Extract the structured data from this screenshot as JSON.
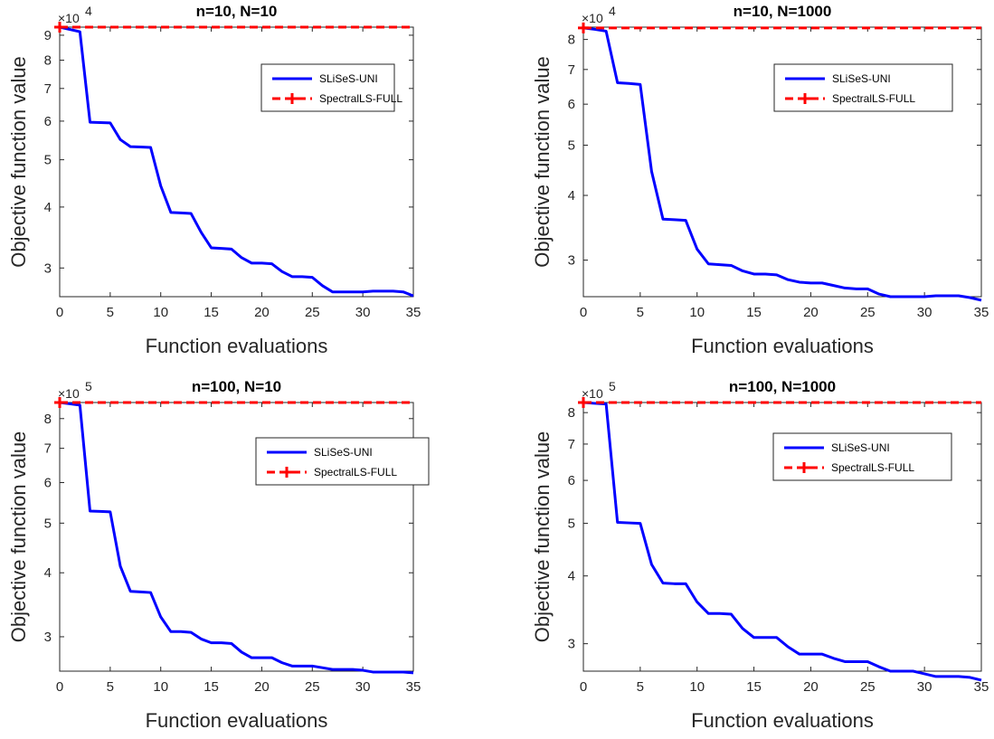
{
  "colors": {
    "uni": "#0000ff",
    "full": "#ff0000",
    "axis": "#262626"
  },
  "chart_data": [
    {
      "type": "line",
      "title": "n=10, N=10",
      "xlabel": "Function evaluations",
      "ylabel": "Objective function value",
      "yscale": "log",
      "exponent_label": "×10",
      "exponent_power": "4",
      "xlim": [
        0,
        35
      ],
      "ylim": [
        2.62,
        9.35
      ],
      "xticks": [
        0,
        5,
        10,
        15,
        20,
        25,
        30,
        35
      ],
      "xtick_labels": [
        "0",
        "5",
        "10",
        "15",
        "20",
        "25",
        "30",
        "35"
      ],
      "yticks": [
        3,
        4,
        5,
        6,
        7,
        8,
        9
      ],
      "ytick_labels": [
        "3",
        "4",
        "5",
        "6",
        "7",
        "8",
        "9"
      ],
      "legend": "inside-top-right",
      "series": [
        {
          "name": "SLiSeS-UNI",
          "x": [
            0,
            1,
            2,
            3,
            4,
            5,
            6,
            7,
            8,
            9,
            10,
            11,
            12,
            13,
            14,
            15,
            16,
            17,
            18,
            19,
            20,
            21,
            22,
            23,
            24,
            25,
            26,
            27,
            28,
            29,
            30,
            31,
            32,
            33,
            34,
            35
          ],
          "y": [
            9.35,
            9.25,
            9.15,
            5.97,
            5.96,
            5.95,
            5.5,
            5.32,
            5.31,
            5.3,
            4.42,
            3.9,
            3.89,
            3.88,
            3.55,
            3.3,
            3.29,
            3.28,
            3.15,
            3.07,
            3.07,
            3.06,
            2.95,
            2.88,
            2.88,
            2.87,
            2.76,
            2.68,
            2.68,
            2.68,
            2.68,
            2.69,
            2.69,
            2.69,
            2.68,
            2.63
          ]
        },
        {
          "name": "SpectralLS-FULL",
          "x": [
            0,
            35
          ],
          "y": [
            9.35,
            9.35
          ]
        }
      ]
    },
    {
      "type": "line",
      "title": "n=10, N=1000",
      "xlabel": "Function evaluations",
      "ylabel": "Objective function value",
      "yscale": "log",
      "exponent_label": "×10",
      "exponent_power": "4",
      "xlim": [
        0,
        35
      ],
      "ylim": [
        2.55,
        8.45
      ],
      "xticks": [
        0,
        5,
        10,
        15,
        20,
        25,
        30,
        35
      ],
      "xtick_labels": [
        "0",
        "5",
        "10",
        "15",
        "20",
        "25",
        "30",
        "35"
      ],
      "yticks": [
        3,
        4,
        5,
        6,
        7,
        8
      ],
      "ytick_labels": [
        "3",
        "4",
        "5",
        "6",
        "7",
        "8"
      ],
      "legend": "inside-top-right",
      "series": [
        {
          "name": "SLiSeS-UNI",
          "x": [
            0,
            1,
            2,
            3,
            4,
            5,
            6,
            7,
            8,
            9,
            10,
            11,
            12,
            13,
            14,
            15,
            16,
            17,
            18,
            19,
            20,
            21,
            22,
            23,
            24,
            25,
            26,
            27,
            28,
            29,
            30,
            31,
            32,
            33,
            34,
            35
          ],
          "y": [
            8.42,
            8.37,
            8.3,
            6.6,
            6.58,
            6.55,
            4.45,
            3.6,
            3.59,
            3.58,
            3.15,
            2.95,
            2.94,
            2.93,
            2.86,
            2.82,
            2.82,
            2.81,
            2.75,
            2.72,
            2.71,
            2.71,
            2.68,
            2.65,
            2.64,
            2.64,
            2.58,
            2.55,
            2.55,
            2.55,
            2.55,
            2.56,
            2.56,
            2.56,
            2.54,
            2.51
          ]
        },
        {
          "name": "SpectralLS-FULL",
          "x": [
            0,
            35
          ],
          "y": [
            8.42,
            8.42
          ]
        }
      ]
    },
    {
      "type": "line",
      "title": "n=100, N=10",
      "xlabel": "Function evaluations",
      "ylabel": "Objective function value",
      "yscale": "log",
      "exponent_label": "×10",
      "exponent_power": "5",
      "xlim": [
        0,
        35
      ],
      "ylim": [
        2.57,
        8.6
      ],
      "xticks": [
        0,
        5,
        10,
        15,
        20,
        25,
        30,
        35
      ],
      "xtick_labels": [
        "0",
        "5",
        "10",
        "15",
        "20",
        "25",
        "30",
        "35"
      ],
      "yticks": [
        3,
        4,
        5,
        6,
        7,
        8
      ],
      "ytick_labels": [
        "3",
        "4",
        "5",
        "6",
        "7",
        "8"
      ],
      "legend": "inside-top-right",
      "series": [
        {
          "name": "SLiSeS-UNI",
          "x": [
            0,
            1,
            2,
            3,
            4,
            5,
            6,
            7,
            8,
            9,
            10,
            11,
            12,
            13,
            14,
            15,
            16,
            17,
            18,
            19,
            20,
            21,
            22,
            23,
            24,
            25,
            26,
            27,
            28,
            29,
            30,
            31,
            32,
            33,
            34,
            35
          ],
          "y": [
            8.6,
            8.55,
            8.5,
            5.28,
            5.27,
            5.26,
            4.12,
            3.68,
            3.67,
            3.66,
            3.28,
            3.07,
            3.07,
            3.06,
            2.97,
            2.92,
            2.92,
            2.91,
            2.8,
            2.73,
            2.73,
            2.73,
            2.67,
            2.63,
            2.63,
            2.63,
            2.61,
            2.59,
            2.59,
            2.59,
            2.58,
            2.56,
            2.56,
            2.56,
            2.56,
            2.55
          ]
        },
        {
          "name": "SpectralLS-FULL",
          "x": [
            0,
            35
          ],
          "y": [
            8.6,
            8.6
          ]
        }
      ]
    },
    {
      "type": "line",
      "title": "n=100, N=1000",
      "xlabel": "Function evaluations",
      "ylabel": "Objective function value",
      "yscale": "log",
      "exponent_label": "×10",
      "exponent_power": "5",
      "xlim": [
        0,
        35
      ],
      "ylim": [
        2.67,
        8.35
      ],
      "xticks": [
        0,
        5,
        10,
        15,
        20,
        25,
        30,
        35
      ],
      "xtick_labels": [
        "0",
        "5",
        "10",
        "15",
        "20",
        "25",
        "30",
        "35"
      ],
      "yticks": [
        3,
        4,
        5,
        6,
        7,
        8
      ],
      "ytick_labels": [
        "3",
        "4",
        "5",
        "6",
        "7",
        "8"
      ],
      "legend": "inside-top-right",
      "series": [
        {
          "name": "SLiSeS-UNI",
          "x": [
            0,
            1,
            2,
            3,
            4,
            5,
            6,
            7,
            8,
            9,
            10,
            11,
            12,
            13,
            14,
            15,
            16,
            17,
            18,
            19,
            20,
            21,
            22,
            23,
            24,
            25,
            26,
            27,
            28,
            29,
            30,
            31,
            32,
            33,
            34,
            35
          ],
          "y": [
            8.35,
            8.32,
            8.3,
            5.02,
            5.01,
            5.0,
            4.2,
            3.88,
            3.87,
            3.87,
            3.58,
            3.41,
            3.41,
            3.4,
            3.2,
            3.08,
            3.08,
            3.08,
            2.96,
            2.87,
            2.87,
            2.87,
            2.82,
            2.78,
            2.78,
            2.78,
            2.72,
            2.67,
            2.67,
            2.67,
            2.64,
            2.61,
            2.61,
            2.61,
            2.6,
            2.57
          ]
        },
        {
          "name": "SpectralLS-FULL",
          "x": [
            0,
            35
          ],
          "y": [
            8.35,
            8.35
          ]
        }
      ]
    }
  ]
}
